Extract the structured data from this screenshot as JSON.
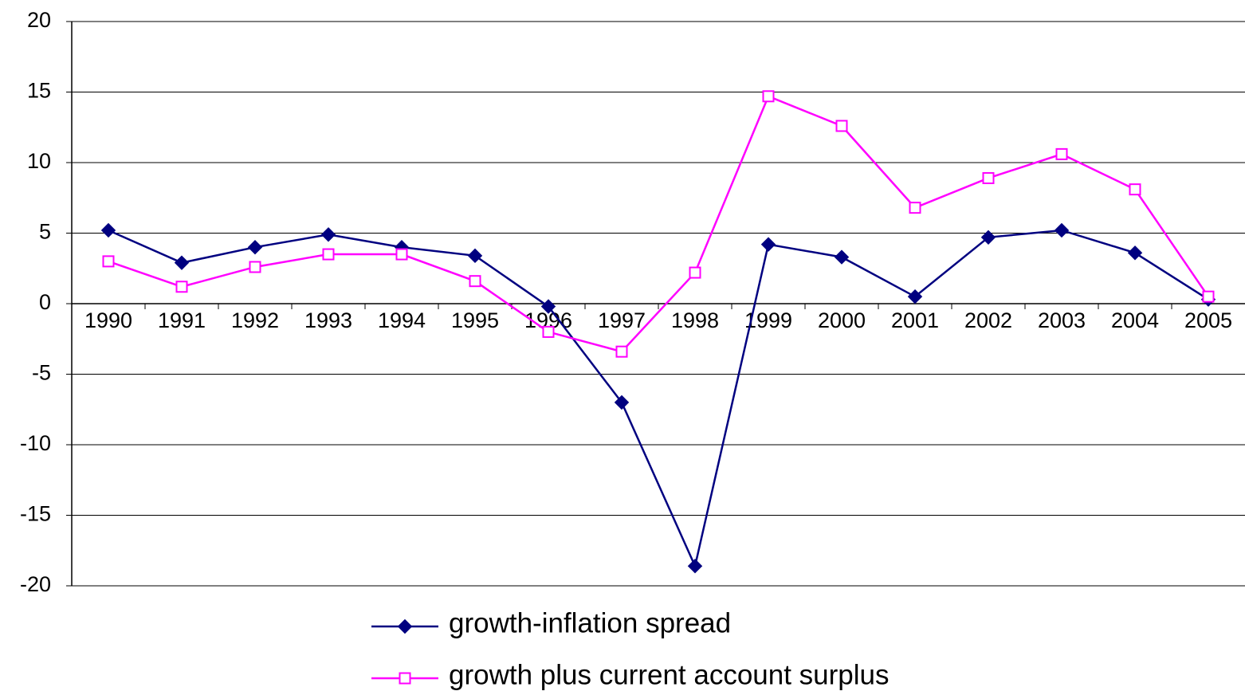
{
  "chart_data": {
    "type": "line",
    "categories": [
      "1990",
      "1991",
      "1992",
      "1993",
      "1994",
      "1995",
      "1996",
      "1997",
      "1998",
      "1999",
      "2000",
      "2001",
      "2002",
      "2003",
      "2004",
      "2005"
    ],
    "series": [
      {
        "name": "growth-inflation spread",
        "color": "#000080",
        "marker": "diamond",
        "values": [
          5.2,
          2.9,
          4.0,
          4.9,
          4.0,
          3.4,
          -0.2,
          -7.0,
          -18.6,
          4.2,
          3.3,
          0.5,
          4.7,
          5.2,
          3.6,
          0.3
        ]
      },
      {
        "name": "growth plus current account surplus",
        "color": "#ff00ff",
        "marker": "square",
        "values": [
          3.0,
          1.2,
          2.6,
          3.5,
          3.5,
          1.6,
          -2.0,
          -3.4,
          2.2,
          14.7,
          12.6,
          6.8,
          8.9,
          10.6,
          8.1,
          0.5
        ]
      }
    ],
    "ylim": [
      -20,
      20
    ],
    "yticks": [
      -20,
      -15,
      -10,
      -5,
      0,
      5,
      10,
      15,
      20
    ],
    "grid": true
  }
}
